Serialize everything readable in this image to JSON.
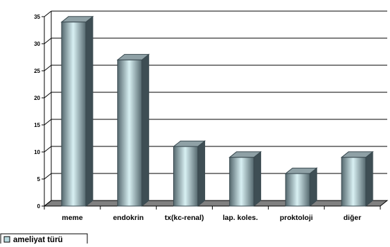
{
  "chart_data": {
    "type": "bar",
    "title": "",
    "xlabel": "",
    "ylabel": "",
    "categories": [
      "meme",
      "endokrin",
      "tx(kc-renal)",
      "lap. koles.",
      "proktoloji",
      "diğer"
    ],
    "series": [
      {
        "name": "ameliyat türü",
        "values": [
          34,
          27,
          11,
          9,
          6,
          9
        ]
      }
    ],
    "ylim": [
      0,
      35
    ],
    "yticks": [
      0,
      5,
      10,
      15,
      20,
      25,
      30,
      35
    ],
    "grid": true,
    "style": "3d-cylinder-bars",
    "legend_position": "bottom-left",
    "colors": {
      "bar_edge": "#3a4a50",
      "bar_dark": "#55686e",
      "bar_light": "#d8f0f3",
      "bar_top": "#8fa1a6",
      "bar_side": "#3e4e54",
      "floor": "#808080",
      "grid": "#000000",
      "axis": "#000000",
      "legend_swatch": "#b9dadf"
    }
  }
}
